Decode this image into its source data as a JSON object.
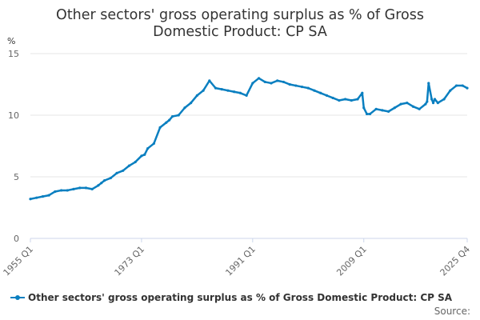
{
  "chart_data": {
    "type": "line",
    "title_lines": [
      "Other sectors' gross operating surplus as % of Gross",
      "Domestic Product: CP SA"
    ],
    "ylabel": "%",
    "ylim": [
      0,
      15
    ],
    "y_ticks": [
      "0",
      "5",
      "10",
      "15"
    ],
    "x_ticks": [
      "1955 Q1",
      "1973 Q1",
      "1991 Q1",
      "2009 Q1",
      "2025 Q4"
    ],
    "x_range": [
      1955.0,
      2025.75
    ],
    "grid": "horizontal",
    "legend": "bottom",
    "colors": {
      "series": "#0A7FC0",
      "grid": "#e6e6e6",
      "axis": "#ccd6eb"
    },
    "series": [
      {
        "name": "Other sectors' gross operating surplus as % of Gross Domestic Product: CP SA",
        "x": [
          1955.0,
          1956.0,
          1957.0,
          1958.0,
          1959.0,
          1960.0,
          1961.0,
          1962.0,
          1963.0,
          1964.0,
          1965.0,
          1966.0,
          1966.5,
          1967.0,
          1968.0,
          1969.0,
          1970.0,
          1971.0,
          1972.0,
          1973.0,
          1973.5,
          1974.0,
          1975.0,
          1976.0,
          1977.0,
          1977.5,
          1978.0,
          1979.0,
          1980.0,
          1981.0,
          1982.0,
          1983.0,
          1984.0,
          1985.0,
          1986.0,
          1987.0,
          1988.0,
          1989.0,
          1990.0,
          1991.0,
          1992.0,
          1993.0,
          1994.0,
          1995.0,
          1996.0,
          1997.0,
          1998.0,
          1999.0,
          2000.0,
          2001.0,
          2002.0,
          2003.0,
          2004.0,
          2005.0,
          2006.0,
          2007.0,
          2008.0,
          2008.75,
          2009.0,
          2009.5,
          2010.0,
          2011.0,
          2012.0,
          2013.0,
          2014.0,
          2015.0,
          2016.0,
          2017.0,
          2018.0,
          2019.0,
          2019.25,
          2019.5,
          2020.0,
          2020.25,
          2020.5,
          2021.0,
          2022.0,
          2023.0,
          2024.0,
          2025.0,
          2025.75
        ],
        "values": [
          3.2,
          3.3,
          3.4,
          3.5,
          3.8,
          3.9,
          3.9,
          4.0,
          4.1,
          4.1,
          4.0,
          4.3,
          4.5,
          4.7,
          4.9,
          5.3,
          5.5,
          5.9,
          6.2,
          6.7,
          6.8,
          7.3,
          7.7,
          9.0,
          9.4,
          9.6,
          9.9,
          10.0,
          10.6,
          11.0,
          11.6,
          12.0,
          12.8,
          12.2,
          12.1,
          12.0,
          11.9,
          11.8,
          11.6,
          12.6,
          13.0,
          12.7,
          12.6,
          12.8,
          12.7,
          12.5,
          12.4,
          12.3,
          12.2,
          12.0,
          11.8,
          11.6,
          11.4,
          11.2,
          11.3,
          11.2,
          11.3,
          11.8,
          10.6,
          10.1,
          10.1,
          10.5,
          10.4,
          10.3,
          10.6,
          10.9,
          11.0,
          10.7,
          10.5,
          10.9,
          11.1,
          12.6,
          11.3,
          11.0,
          11.3,
          11.0,
          11.3,
          12.0,
          12.4,
          12.4,
          12.2
        ]
      }
    ]
  },
  "footer": {
    "source_label": "Source:"
  }
}
